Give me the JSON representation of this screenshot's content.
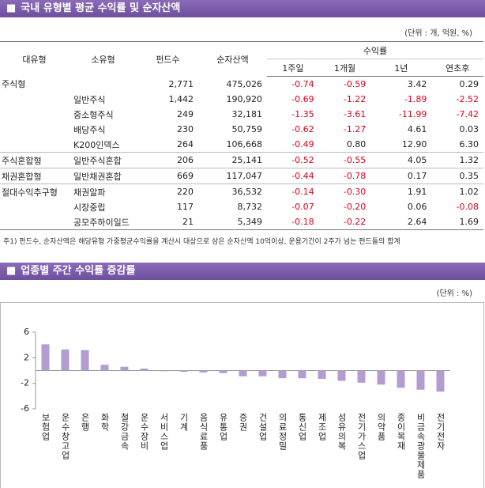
{
  "section1": {
    "title": "국내 유형별 평균 수익률 및 순자산액",
    "unit": "(단위 : 개, 억원, %)",
    "table": {
      "header": {
        "group": "대유형",
        "type": "소유형",
        "funds": "펀드수",
        "assets": "순자산액",
        "returns": "수익률",
        "periods": [
          "1주일",
          "1개월",
          "1년",
          "연초후"
        ]
      },
      "rows": [
        [
          "주식형",
          null,
          "2,771",
          "475,026",
          "-0.74",
          "-0.59",
          "3.42",
          "0.29"
        ],
        [
          null,
          "일반주식",
          "1,442",
          "190,920",
          "-0.69",
          "-1.22",
          "-1.89",
          "-2.52"
        ],
        [
          null,
          "중소형주식",
          "249",
          "32,181",
          "-1.35",
          "-3.61",
          "-11.99",
          "-7.42"
        ],
        [
          null,
          "배당주식",
          "230",
          "50,759",
          "-0.62",
          "-1.27",
          "4.61",
          "0.03"
        ],
        [
          null,
          "K200인덱스",
          "264",
          "106,668",
          "-0.49",
          "0.80",
          "12.90",
          "6.30"
        ],
        [
          "주식혼합형",
          "일반주식혼합",
          "206",
          "25,141",
          "-0.52",
          "-0.55",
          "4.05",
          "1.32"
        ],
        [
          "채권혼합형",
          "일반채권혼합",
          "669",
          "117,047",
          "-0.44",
          "-0.78",
          "0.17",
          "0.35"
        ],
        [
          "절대수익추구형",
          "채권알파",
          "220",
          "36,532",
          "-0.14",
          "-0.30",
          "1.91",
          "1.02"
        ],
        [
          null,
          "시장중립",
          "117",
          "8,732",
          "-0.07",
          "-0.20",
          "0.06",
          "-0.08"
        ],
        [
          null,
          "공모주하이일드",
          "21",
          "5,349",
          "-0.18",
          "-0.22",
          "2.64",
          "1.69"
        ]
      ]
    },
    "note": "주1) 펀드수, 순자산액은 해당유형 가중평균수익률을 계산시 대상으로 삼은 순자산액 10억이상, 운용기간이 2주가 넘는 펀드들의 합계"
  },
  "section2": {
    "title": "업종별 주간 수익률 증감률",
    "unit": "(단위 : %)"
  },
  "chart_data": {
    "type": "bar",
    "categories": [
      "보험업",
      "운수창고업",
      "은행",
      "화학",
      "철강금속",
      "운수장비",
      "서비스업",
      "기계",
      "음식료품",
      "유통업",
      "증권",
      "건설업",
      "의료정밀",
      "통신업",
      "제조업",
      "섬유의복",
      "전기가스업",
      "의약품",
      "종이목재",
      "비금속광물제품",
      "전기전자"
    ],
    "values": [
      4.1,
      3.3,
      3.2,
      0.9,
      0.6,
      0.3,
      -0.1,
      -0.2,
      -0.3,
      -0.4,
      -0.9,
      -0.9,
      -1.2,
      -1.2,
      -1.3,
      -1.6,
      -1.9,
      -2.2,
      -2.7,
      -3.0,
      -3.3
    ],
    "color": "#b39cd0",
    "ylim": [
      -6,
      6
    ],
    "yticks": [
      6,
      2,
      -2,
      -6
    ]
  }
}
